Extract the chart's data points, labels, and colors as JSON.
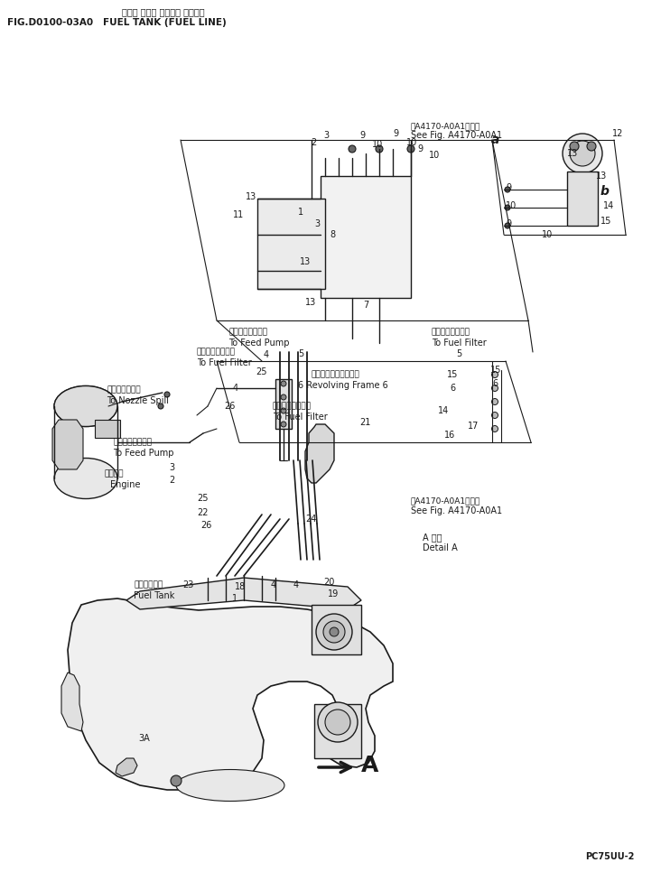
{
  "bg_color": "#ffffff",
  "line_color": "#1a1a1a",
  "fig_width": 7.32,
  "fig_height": 9.66,
  "dpi": 100,
  "header_jp": "フェル タンク （フェル ライン）",
  "header_en": "FIG.D0100-03A0   FUEL TANK (FUEL LINE)",
  "footer": "PC75UU-2",
  "see_fig_jp1": "第A4170-A0A1図参照",
  "see_fig_en1": "See Fig. A4170-A0A1",
  "see_fig_jp2": "第A4170-A0A1図参照",
  "see_fig_en2": "See Fig. A4170-A0A1",
  "detail_jp": "A 詳細",
  "detail_en": "Detail A",
  "lbl_feed_pump_jp": "フィードポンプへ",
  "lbl_feed_pump_en": "To Feed Pump",
  "lbl_nozzle_jp": "ノズルスピルへ",
  "lbl_nozzle_en": "To Nozzle Spill",
  "lbl_feed2_jp": "フィードポンプへ",
  "lbl_feed2_en": "To Feed Pump",
  "lbl_engine_jp": "エンジン",
  "lbl_engine_en": "Engine",
  "lbl_filter1_jp": "フェルフィルタへ",
  "lbl_filter1_en": "To Fuel Filter",
  "lbl_filter2_jp": "フェルフィルタへ",
  "lbl_filter2_en": "To Fuel Filter",
  "lbl_filter3_jp": "フェルフィルタへ",
  "lbl_filter3_en": "To Fuel Filter",
  "lbl_revolve_jp": "レボルビングフレーム",
  "lbl_revolve_en": "6 Revolving Frame 6",
  "lbl_tank_jp": "フェルタンク",
  "lbl_tank_en": "Fuel Tank"
}
